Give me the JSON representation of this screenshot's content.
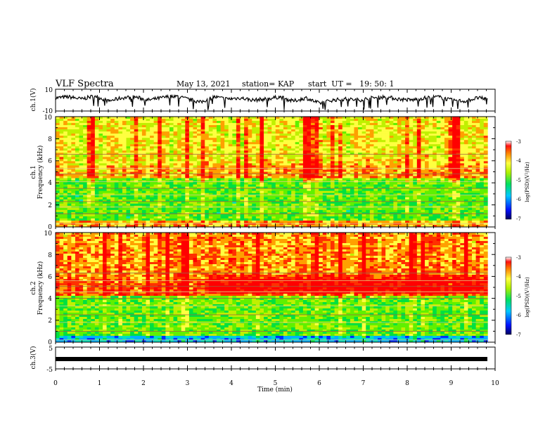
{
  "header": {
    "title": "VLF Spectra",
    "date": "May 13, 2021",
    "station": "station= KAP",
    "start": "start  UT =   19: 50: 1"
  },
  "chart_data": [
    {
      "type": "line",
      "panel": "ch1-voltage",
      "ylabel": "ch.1(V)",
      "ylim": [
        -10,
        10
      ],
      "ytick_labels": [
        "10",
        "-10"
      ],
      "xlim": [
        0,
        10
      ],
      "x_data_end": 9.83,
      "series": [
        {
          "x": [
            0,
            0.3,
            0.6,
            0.9,
            1.2,
            1.5,
            1.8,
            2.1,
            2.4,
            2.7,
            3.0,
            3.3,
            3.6,
            3.9,
            4.2,
            4.5,
            4.8,
            5.1,
            5.4,
            5.7,
            6.0,
            6.3,
            6.6,
            6.9,
            7.2,
            7.5,
            7.8,
            8.1,
            8.4,
            8.7,
            9.0,
            9.3,
            9.6,
            9.83
          ],
          "y": [
            2,
            3,
            1,
            4,
            -1,
            2,
            3,
            0,
            2,
            4,
            1,
            -2,
            3,
            1,
            2,
            0,
            1,
            3,
            -1,
            2,
            -3,
            0,
            1,
            0,
            2,
            3,
            1,
            0,
            2,
            3,
            0,
            -1,
            2,
            1
          ]
        }
      ]
    },
    {
      "type": "heatmap",
      "panel": "ch1-spectrogram",
      "ylabel": "ch.1\nFrequency (kHz)",
      "ylim": [
        0,
        10
      ],
      "ytick_labels": [
        "0",
        "2",
        "4",
        "6",
        "8",
        "10"
      ],
      "xlim": [
        0,
        10
      ],
      "x_data_end": 9.83,
      "colorbar": {
        "label": "log(PSD)(V²/Hz)",
        "range": [
          -7,
          -3
        ],
        "tick_labels": [
          "-3",
          "-4",
          "-5",
          "-6",
          "-7"
        ]
      }
    },
    {
      "type": "heatmap",
      "panel": "ch2-spectrogram",
      "ylabel": "ch.2\nFrequency (kHz)",
      "ylim": [
        0,
        10
      ],
      "ytick_labels": [
        "0",
        "2",
        "4",
        "6",
        "8",
        "10"
      ],
      "xlim": [
        0,
        10
      ],
      "x_data_end": 9.83,
      "colorbar": {
        "label": "log(PSD)(V²/Hz)",
        "range": [
          -7,
          -3
        ],
        "tick_labels": [
          "-3",
          "-4",
          "-5",
          "-6",
          "-7"
        ]
      }
    },
    {
      "type": "line",
      "panel": "ch3-voltage",
      "ylabel": "ch.3(V)",
      "ylim": [
        -5,
        5
      ],
      "ytick_labels": [
        "5",
        "-5"
      ],
      "xlim": [
        0,
        10
      ],
      "x_data_end": 9.83,
      "series": [
        {
          "x": [
            0,
            9.83
          ],
          "y": [
            0,
            0
          ]
        }
      ]
    }
  ],
  "xaxis": {
    "label": "Time (min)",
    "tick_labels": [
      "0",
      "1",
      "2",
      "3",
      "4",
      "5",
      "6",
      "7",
      "8",
      "9",
      "10"
    ]
  },
  "ch1_ylabel_top": "ch.1",
  "ch1_ylabel_bottom": "Frequency (kHz)",
  "ch2_ylabel_top": "ch.2",
  "ch2_ylabel_bottom": "Frequency (kHz)",
  "colorbar_label_main": "log(PSD)(V",
  "colorbar_label_sup": "2",
  "colorbar_label_end": "/Hz)"
}
